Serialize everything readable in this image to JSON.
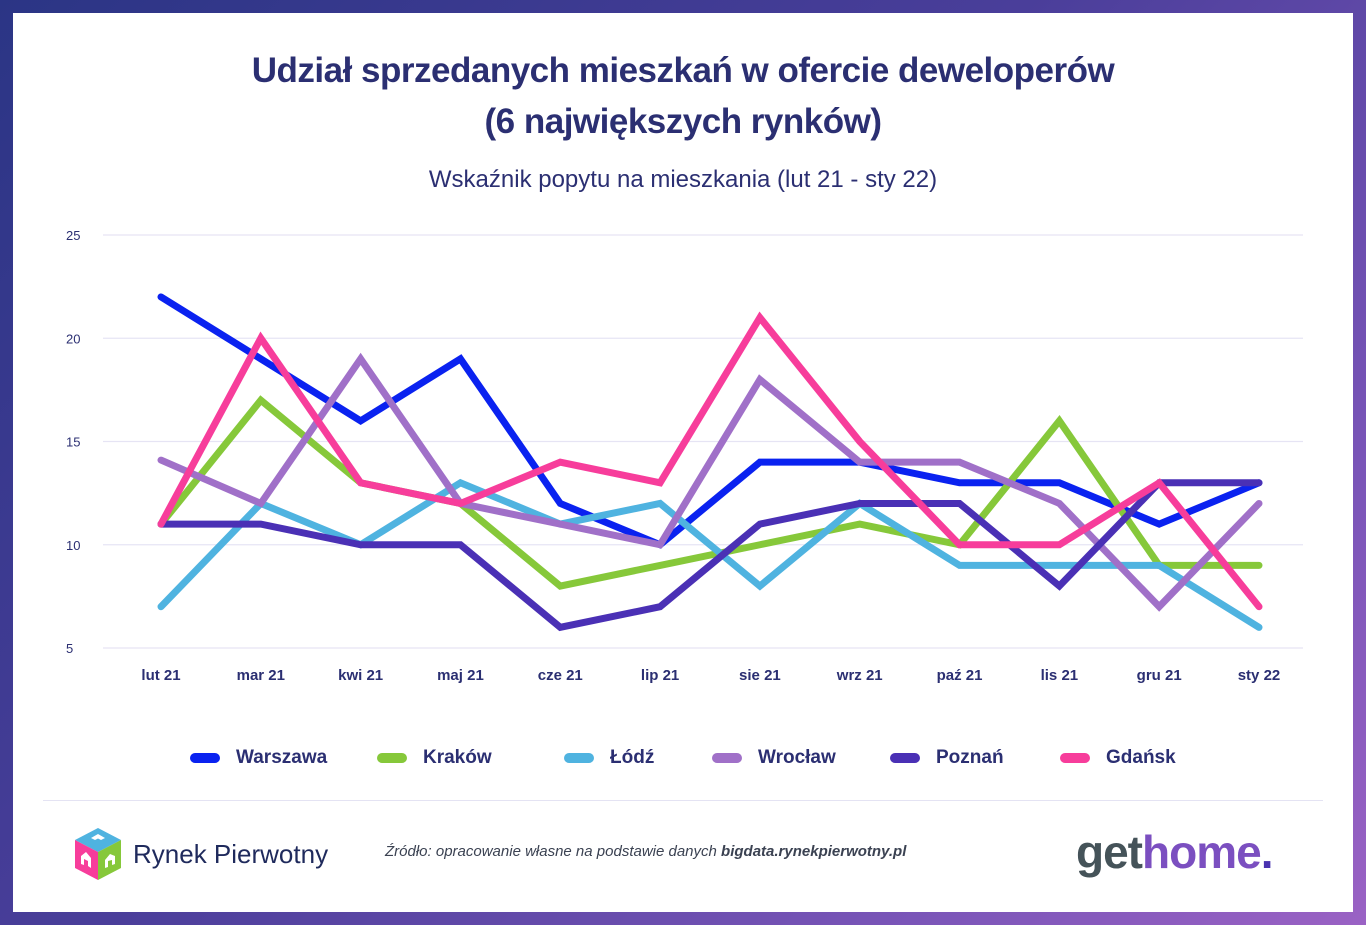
{
  "header": {
    "title_line1": "Udział sprzedanych mieszkań w ofercie deweloperów",
    "title_line2": "(6 największych rynków)",
    "subtitle": "Wskaźnik popytu na mieszkania (lut 21 - sty 22)"
  },
  "chart_data": {
    "type": "line",
    "title": "Udział sprzedanych mieszkań w ofercie deweloperów (6 największych rynków)",
    "subtitle": "Wskaźnik popytu na mieszkania (lut 21 - sty 22)",
    "xlabel": "",
    "ylabel": "",
    "categories": [
      "lut 21",
      "mar 21",
      "kwi 21",
      "maj 21",
      "cze 21",
      "lip 21",
      "sie 21",
      "wrz 21",
      "paź 21",
      "lis 21",
      "gru 21",
      "sty 22"
    ],
    "ylim": [
      5,
      25
    ],
    "yticks": [
      5,
      10,
      15,
      20,
      25
    ],
    "grid": true,
    "legend_position": "bottom",
    "series": [
      {
        "name": "Warszawa",
        "color": "#0a22f0",
        "values": [
          22,
          19,
          16,
          19,
          12,
          10,
          14,
          14,
          13,
          13,
          11,
          13
        ]
      },
      {
        "name": "Kraków",
        "color": "#86c83a",
        "values": [
          11,
          17,
          13,
          12,
          8,
          9,
          10,
          11,
          10,
          16,
          9,
          9
        ]
      },
      {
        "name": "Łódź",
        "color": "#4fb3e0",
        "values": [
          7,
          12,
          10,
          13,
          11,
          12,
          8,
          12,
          9,
          9,
          9,
          6
        ]
      },
      {
        "name": "Wrocław",
        "color": "#a070c8",
        "values": [
          14.1,
          12,
          19,
          12,
          11,
          10,
          18,
          14,
          14,
          12,
          7,
          12
        ]
      },
      {
        "name": "Poznań",
        "color": "#4a30b5",
        "values": [
          11,
          11,
          10,
          10,
          6,
          7,
          11,
          12,
          12,
          8,
          13,
          13
        ]
      },
      {
        "name": "Gdańsk",
        "color": "#f73d9b",
        "values": [
          11,
          20,
          13,
          12,
          14,
          13,
          21,
          15,
          10,
          10,
          13,
          7
        ]
      }
    ]
  },
  "footer": {
    "logo_text": "Rynek Pierwotny",
    "source_prefix": "Źródło: opracowanie własne na podstawie danych ",
    "source_bold": "bigdata.rynekpierwotny.pl",
    "brand_get": "get",
    "brand_home": "home",
    "brand_dot": "."
  }
}
